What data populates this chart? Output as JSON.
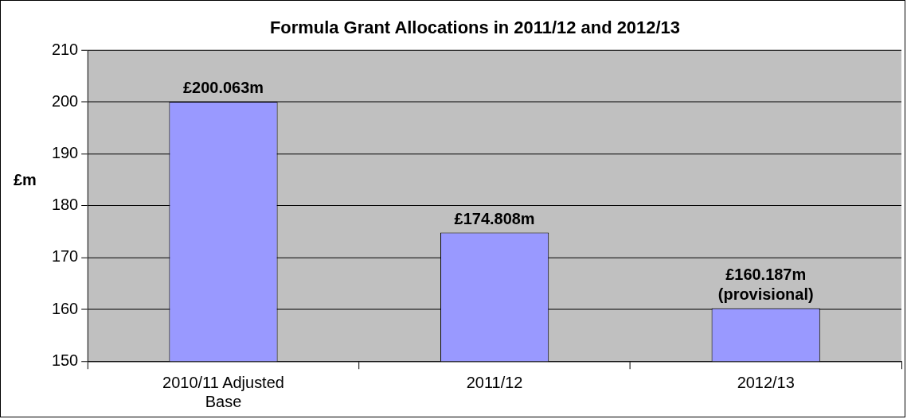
{
  "chart_data": {
    "type": "bar",
    "title": "Formula Grant Allocations in 2011/12 and 2012/13",
    "ylabel": "£m",
    "categories": [
      "2010/11 Adjusted Base",
      "2011/12",
      "2012/13"
    ],
    "values": [
      200.063,
      174.808,
      160.187
    ],
    "value_labels": [
      "£200.063m",
      "£174.808m",
      "£160.187m\n(provisional)"
    ],
    "color": "#9999ff",
    "ylim": [
      150,
      210
    ],
    "yticks": [
      150,
      160,
      170,
      180,
      190,
      200,
      210
    ],
    "grid": "y",
    "legend": false
  }
}
